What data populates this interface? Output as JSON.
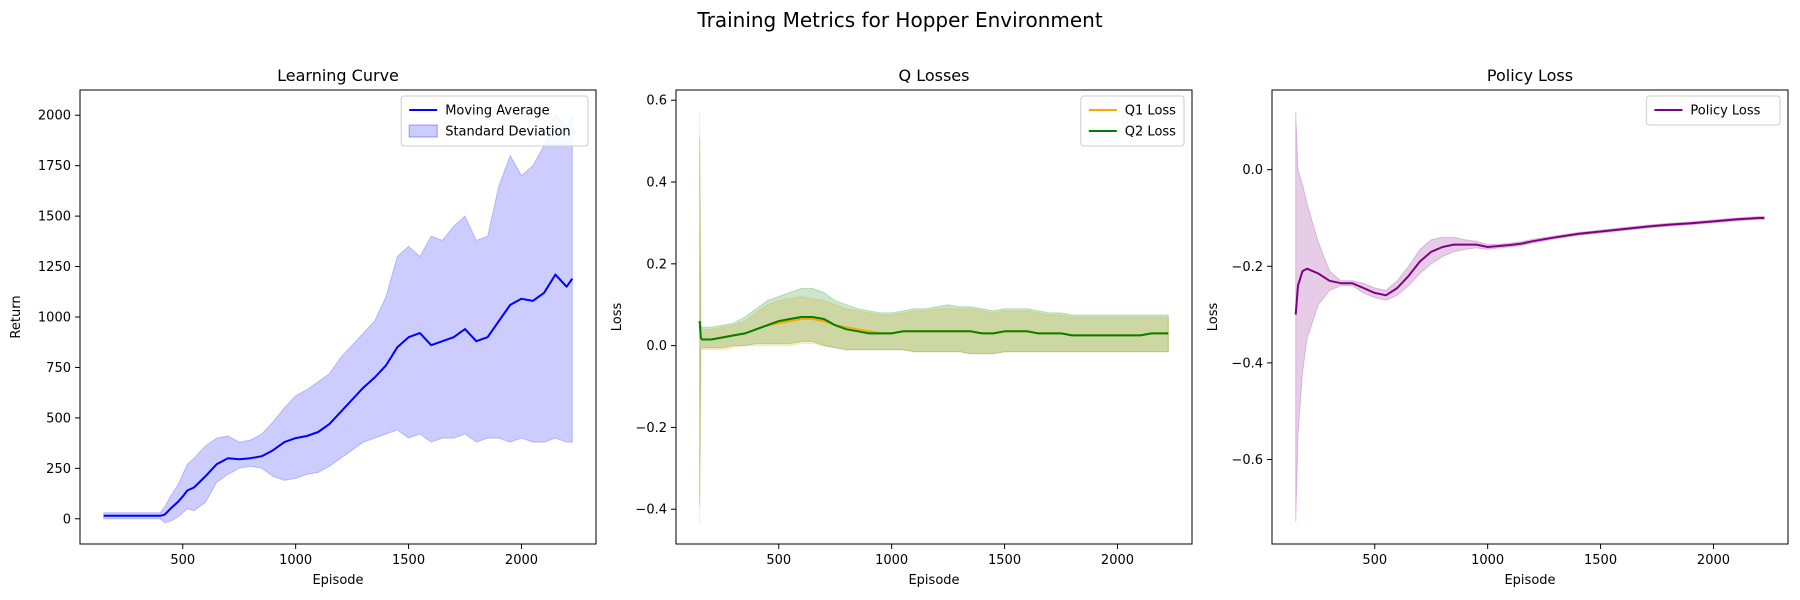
{
  "figure": {
    "suptitle": "Training Metrics for Hopper Environment"
  },
  "chart_data": [
    {
      "type": "line",
      "title": "Learning Curve",
      "xlabel": "Episode",
      "ylabel": "Return",
      "xlim": [
        45,
        2330
      ],
      "ylim": [
        -125,
        2125
      ],
      "xticks": [
        500,
        1000,
        1500,
        2000
      ],
      "yticks": [
        0,
        250,
        500,
        750,
        1000,
        1250,
        1500,
        1750,
        2000
      ],
      "legend_position": "upper right",
      "series": [
        {
          "name": "Moving Average",
          "kind": "line",
          "color": "#0000ff",
          "x": [
            150,
            200,
            250,
            300,
            350,
            400,
            420,
            450,
            480,
            500,
            520,
            550,
            600,
            650,
            700,
            750,
            800,
            850,
            900,
            950,
            1000,
            1050,
            1100,
            1150,
            1200,
            1250,
            1300,
            1350,
            1400,
            1450,
            1500,
            1550,
            1600,
            1650,
            1700,
            1750,
            1800,
            1850,
            1900,
            1950,
            2000,
            2050,
            2100,
            2150,
            2200,
            2225
          ],
          "y": [
            15,
            15,
            15,
            15,
            15,
            15,
            20,
            55,
            85,
            110,
            140,
            155,
            210,
            270,
            300,
            295,
            300,
            310,
            340,
            380,
            400,
            410,
            430,
            470,
            530,
            590,
            650,
            700,
            760,
            850,
            900,
            920,
            860,
            880,
            900,
            940,
            880,
            900,
            980,
            1060,
            1090,
            1080,
            1120,
            1210,
            1150,
            1190
          ]
        },
        {
          "name": "Standard Deviation",
          "kind": "band",
          "color": "#0000ff",
          "opacity": 0.2,
          "x": [
            150,
            200,
            250,
            300,
            350,
            400,
            420,
            450,
            480,
            500,
            520,
            550,
            600,
            650,
            700,
            750,
            800,
            850,
            900,
            950,
            1000,
            1050,
            1100,
            1150,
            1200,
            1250,
            1300,
            1350,
            1400,
            1450,
            1500,
            1550,
            1600,
            1650,
            1700,
            1750,
            1800,
            1850,
            1900,
            1950,
            2000,
            2050,
            2100,
            2150,
            2200,
            2225
          ],
          "lower": [
            0,
            0,
            0,
            0,
            0,
            0,
            -20,
            -10,
            10,
            30,
            50,
            40,
            80,
            180,
            220,
            250,
            260,
            250,
            210,
            190,
            200,
            220,
            230,
            260,
            300,
            340,
            380,
            400,
            420,
            440,
            400,
            420,
            380,
            400,
            400,
            420,
            380,
            400,
            400,
            380,
            400,
            380,
            380,
            400,
            380,
            380
          ],
          "upper": [
            30,
            30,
            30,
            30,
            30,
            30,
            60,
            120,
            170,
            220,
            270,
            300,
            360,
            400,
            410,
            380,
            390,
            420,
            480,
            550,
            610,
            640,
            680,
            720,
            800,
            860,
            920,
            980,
            1100,
            1300,
            1350,
            1300,
            1400,
            1380,
            1450,
            1500,
            1380,
            1400,
            1650,
            1800,
            1700,
            1750,
            1850,
            2000,
            1950,
            2000
          ]
        }
      ]
    },
    {
      "type": "line",
      "title": "Q Losses",
      "xlabel": "Episode",
      "ylabel": "Loss",
      "xlim": [
        45,
        2330
      ],
      "ylim": [
        -0.485,
        0.625
      ],
      "xticks": [
        500,
        1000,
        1500,
        2000
      ],
      "yticks": [
        -0.4,
        -0.2,
        0.0,
        0.2,
        0.4,
        0.6
      ],
      "legend_position": "upper right",
      "series": [
        {
          "name": "Q1 Loss",
          "kind": "line",
          "color": "#ffa500",
          "x": [
            150,
            155,
            160,
            170,
            200,
            250,
            300,
            350,
            400,
            450,
            500,
            550,
            600,
            650,
            700,
            750,
            800,
            850,
            900,
            950,
            1000,
            1050,
            1100,
            1150,
            1200,
            1250,
            1300,
            1350,
            1400,
            1450,
            1500,
            1550,
            1600,
            1650,
            1700,
            1750,
            1800,
            1850,
            1900,
            1950,
            2000,
            2050,
            2100,
            2150,
            2200,
            2225
          ],
          "y": [
            0.06,
            0.02,
            0.015,
            0.015,
            0.015,
            0.02,
            0.025,
            0.03,
            0.04,
            0.05,
            0.055,
            0.06,
            0.065,
            0.065,
            0.06,
            0.05,
            0.045,
            0.04,
            0.035,
            0.03,
            0.03,
            0.035,
            0.035,
            0.035,
            0.035,
            0.035,
            0.035,
            0.035,
            0.03,
            0.03,
            0.035,
            0.035,
            0.035,
            0.03,
            0.03,
            0.03,
            0.025,
            0.025,
            0.025,
            0.025,
            0.025,
            0.025,
            0.025,
            0.03,
            0.03,
            0.03
          ]
        },
        {
          "name": "Q2 Loss",
          "kind": "line",
          "color": "#008000",
          "x": [
            150,
            155,
            160,
            170,
            200,
            250,
            300,
            350,
            400,
            450,
            500,
            550,
            600,
            650,
            700,
            750,
            800,
            850,
            900,
            950,
            1000,
            1050,
            1100,
            1150,
            1200,
            1250,
            1300,
            1350,
            1400,
            1450,
            1500,
            1550,
            1600,
            1650,
            1700,
            1750,
            1800,
            1850,
            1900,
            1950,
            2000,
            2050,
            2100,
            2150,
            2200,
            2225
          ],
          "y": [
            0.06,
            0.02,
            0.015,
            0.015,
            0.015,
            0.02,
            0.025,
            0.03,
            0.04,
            0.05,
            0.06,
            0.065,
            0.07,
            0.07,
            0.065,
            0.05,
            0.04,
            0.035,
            0.03,
            0.03,
            0.03,
            0.035,
            0.035,
            0.035,
            0.035,
            0.035,
            0.035,
            0.035,
            0.03,
            0.03,
            0.035,
            0.035,
            0.035,
            0.03,
            0.03,
            0.03,
            0.025,
            0.025,
            0.025,
            0.025,
            0.025,
            0.025,
            0.025,
            0.03,
            0.03,
            0.03
          ]
        },
        {
          "name": "Q1 band",
          "kind": "band",
          "color": "#ffa500",
          "opacity": 0.2,
          "x": [
            150,
            155,
            160,
            170,
            200,
            250,
            300,
            350,
            400,
            450,
            500,
            550,
            600,
            650,
            700,
            750,
            800,
            850,
            900,
            950,
            1000,
            1050,
            1100,
            1150,
            1200,
            1250,
            1300,
            1350,
            1400,
            1450,
            1500,
            1550,
            1600,
            1650,
            1700,
            1750,
            1800,
            1850,
            1900,
            1950,
            2000,
            2050,
            2100,
            2150,
            2200,
            2225
          ],
          "lower": [
            -0.44,
            -0.01,
            -0.01,
            -0.01,
            -0.01,
            -0.01,
            -0.005,
            0.0,
            0.0,
            0.0,
            0.0,
            0.0,
            0.005,
            0.005,
            0.0,
            -0.005,
            -0.01,
            -0.01,
            -0.01,
            -0.01,
            -0.01,
            -0.01,
            -0.015,
            -0.015,
            -0.015,
            -0.015,
            -0.015,
            -0.02,
            -0.02,
            -0.02,
            -0.015,
            -0.015,
            -0.015,
            -0.015,
            -0.015,
            -0.015,
            -0.015,
            -0.015,
            -0.015,
            -0.015,
            -0.015,
            -0.015,
            -0.015,
            -0.015,
            -0.015,
            -0.015
          ],
          "upper": [
            0.57,
            0.05,
            0.04,
            0.04,
            0.04,
            0.045,
            0.05,
            0.06,
            0.08,
            0.1,
            0.11,
            0.115,
            0.12,
            0.115,
            0.11,
            0.1,
            0.09,
            0.085,
            0.08,
            0.075,
            0.075,
            0.08,
            0.085,
            0.085,
            0.09,
            0.09,
            0.09,
            0.09,
            0.085,
            0.08,
            0.085,
            0.085,
            0.085,
            0.08,
            0.075,
            0.075,
            0.07,
            0.07,
            0.07,
            0.07,
            0.07,
            0.07,
            0.07,
            0.07,
            0.07,
            0.07
          ]
        },
        {
          "name": "Q2 band",
          "kind": "band",
          "color": "#008000",
          "opacity": 0.2,
          "x": [
            150,
            155,
            160,
            170,
            200,
            250,
            300,
            350,
            400,
            450,
            500,
            550,
            600,
            650,
            700,
            750,
            800,
            850,
            900,
            950,
            1000,
            1050,
            1100,
            1150,
            1200,
            1250,
            1300,
            1350,
            1400,
            1450,
            1500,
            1550,
            1600,
            1650,
            1700,
            1750,
            1800,
            1850,
            1900,
            1950,
            2000,
            2050,
            2100,
            2150,
            2200,
            2225
          ],
          "lower": [
            -0.39,
            -0.005,
            -0.005,
            -0.005,
            -0.005,
            -0.005,
            0.0,
            0.0,
            0.005,
            0.005,
            0.005,
            0.005,
            0.01,
            0.01,
            0.0,
            -0.005,
            -0.01,
            -0.01,
            -0.01,
            -0.01,
            -0.01,
            -0.01,
            -0.015,
            -0.015,
            -0.015,
            -0.015,
            -0.015,
            -0.02,
            -0.02,
            -0.02,
            -0.015,
            -0.015,
            -0.015,
            -0.015,
            -0.015,
            -0.015,
            -0.015,
            -0.015,
            -0.015,
            -0.015,
            -0.015,
            -0.015,
            -0.015,
            -0.015,
            -0.015,
            -0.015
          ],
          "upper": [
            0.51,
            0.05,
            0.045,
            0.045,
            0.045,
            0.05,
            0.055,
            0.07,
            0.09,
            0.11,
            0.12,
            0.13,
            0.14,
            0.14,
            0.13,
            0.11,
            0.1,
            0.09,
            0.085,
            0.08,
            0.08,
            0.085,
            0.09,
            0.09,
            0.095,
            0.1,
            0.095,
            0.095,
            0.09,
            0.085,
            0.09,
            0.09,
            0.09,
            0.085,
            0.08,
            0.08,
            0.075,
            0.075,
            0.075,
            0.075,
            0.075,
            0.075,
            0.075,
            0.075,
            0.075,
            0.075
          ]
        }
      ]
    },
    {
      "type": "line",
      "title": "Policy Loss",
      "xlabel": "Episode",
      "ylabel": "Loss",
      "xlim": [
        45,
        2330
      ],
      "ylim": [
        -0.775,
        0.165
      ],
      "xticks": [
        500,
        1000,
        1500,
        2000
      ],
      "yticks": [
        -0.6,
        -0.4,
        -0.2,
        0.0
      ],
      "legend_position": "upper right",
      "series": [
        {
          "name": "Policy Loss",
          "kind": "line",
          "color": "#800080",
          "x": [
            150,
            160,
            180,
            200,
            250,
            300,
            350,
            400,
            450,
            500,
            550,
            600,
            650,
            700,
            750,
            800,
            850,
            900,
            950,
            1000,
            1050,
            1100,
            1150,
            1200,
            1300,
            1400,
            1500,
            1600,
            1700,
            1800,
            1900,
            2000,
            2100,
            2200,
            2225
          ],
          "y": [
            -0.3,
            -0.24,
            -0.21,
            -0.205,
            -0.215,
            -0.23,
            -0.235,
            -0.235,
            -0.245,
            -0.255,
            -0.26,
            -0.245,
            -0.22,
            -0.19,
            -0.17,
            -0.16,
            -0.155,
            -0.155,
            -0.155,
            -0.16,
            -0.158,
            -0.156,
            -0.153,
            -0.148,
            -0.14,
            -0.133,
            -0.128,
            -0.123,
            -0.118,
            -0.114,
            -0.111,
            -0.107,
            -0.103,
            -0.1,
            -0.1
          ]
        },
        {
          "name": "Policy Loss band",
          "kind": "band",
          "color": "#800080",
          "opacity": 0.2,
          "x": [
            150,
            160,
            180,
            200,
            250,
            300,
            350,
            400,
            450,
            500,
            550,
            600,
            650,
            700,
            750,
            800,
            850,
            900,
            950,
            1000,
            1050,
            1100,
            1150,
            1200,
            1300,
            1400,
            1500,
            1600,
            1700,
            1800,
            1900,
            2000,
            2100,
            2200,
            2225
          ],
          "lower": [
            -0.73,
            -0.55,
            -0.42,
            -0.35,
            -0.28,
            -0.25,
            -0.24,
            -0.24,
            -0.255,
            -0.265,
            -0.27,
            -0.26,
            -0.24,
            -0.215,
            -0.195,
            -0.18,
            -0.17,
            -0.165,
            -0.162,
            -0.165,
            -0.162,
            -0.16,
            -0.157,
            -0.152,
            -0.143,
            -0.136,
            -0.131,
            -0.126,
            -0.121,
            -0.117,
            -0.114,
            -0.11,
            -0.106,
            -0.103,
            -0.103
          ],
          "upper": [
            0.12,
            0.0,
            -0.03,
            -0.07,
            -0.15,
            -0.21,
            -0.23,
            -0.23,
            -0.235,
            -0.245,
            -0.25,
            -0.23,
            -0.2,
            -0.165,
            -0.145,
            -0.14,
            -0.14,
            -0.145,
            -0.148,
            -0.155,
            -0.154,
            -0.152,
            -0.149,
            -0.144,
            -0.137,
            -0.13,
            -0.125,
            -0.12,
            -0.115,
            -0.111,
            -0.108,
            -0.104,
            -0.1,
            -0.097,
            -0.097
          ]
        }
      ]
    }
  ]
}
